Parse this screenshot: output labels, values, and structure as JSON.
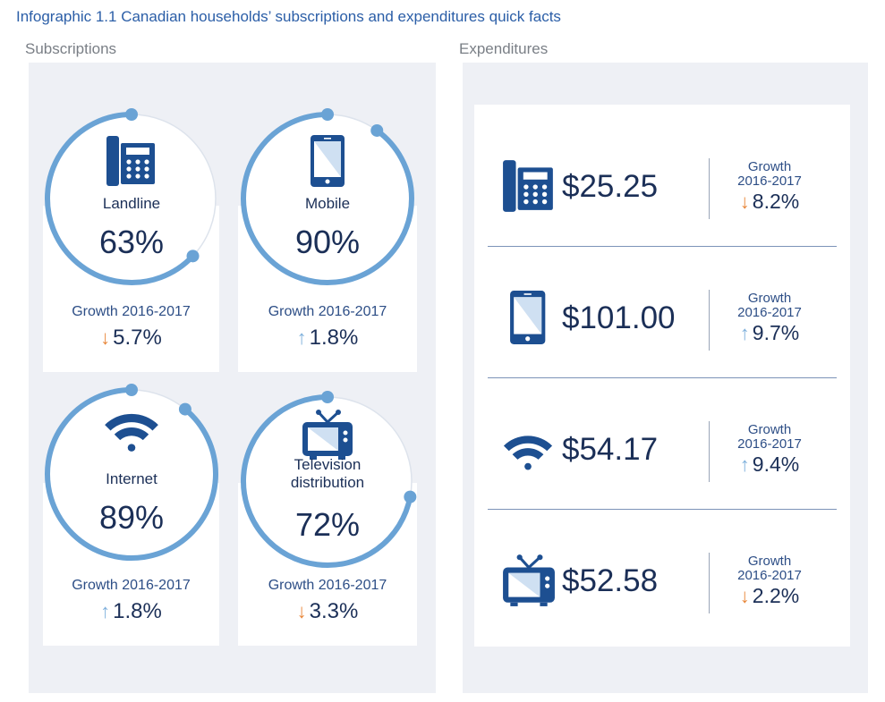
{
  "title": "Infographic 1.1 Canadian households’ subscriptions and expenditures quick facts",
  "subscriptions": {
    "heading": "Subscriptions",
    "items": [
      {
        "name": "Landline",
        "percent": "63%",
        "value": 63,
        "growth_label": "Growth 2016-2017",
        "growth": "5.7%",
        "direction": "down",
        "icon": "landline-phone-icon"
      },
      {
        "name": "Mobile",
        "percent": "90%",
        "value": 90,
        "growth_label": "Growth 2016-2017",
        "growth": "1.8%",
        "direction": "up",
        "icon": "mobile-phone-icon"
      },
      {
        "name": "Internet",
        "percent": "89%",
        "value": 89,
        "growth_label": "Growth 2016-2017",
        "growth": "1.8%",
        "direction": "up",
        "icon": "wifi-icon"
      },
      {
        "name": "Television distribution",
        "percent": "72%",
        "value": 72,
        "growth_label": "Growth 2016-2017",
        "growth": "3.3%",
        "direction": "down",
        "icon": "television-icon"
      }
    ]
  },
  "expenditures": {
    "heading": "Expenditures",
    "items": [
      {
        "amount": "$25.25",
        "growth_label_1": "Growth",
        "growth_label_2": "2016-2017",
        "growth": "8.2%",
        "direction": "down",
        "icon": "landline-phone-icon"
      },
      {
        "amount": "$101.00",
        "growth_label_1": "Growth",
        "growth_label_2": "2016-2017",
        "growth": "9.7%",
        "direction": "up",
        "icon": "mobile-phone-icon"
      },
      {
        "amount": "$54.17",
        "growth_label_1": "Growth",
        "growth_label_2": "2016-2017",
        "growth": "9.4%",
        "direction": "up",
        "icon": "wifi-icon"
      },
      {
        "amount": "$52.58",
        "growth_label_1": "Growth",
        "growth_label_2": "2016-2017",
        "growth": "2.2%",
        "direction": "down",
        "icon": "television-icon"
      }
    ]
  },
  "arrows": {
    "up": "↑",
    "down": "↓"
  },
  "colors": {
    "ring": "#6aa3d5",
    "icon": "#1d4f91",
    "text": "#1b2f57",
    "down": "#e8873a",
    "up": "#7fb0dc",
    "panel": "#eef0f5"
  }
}
